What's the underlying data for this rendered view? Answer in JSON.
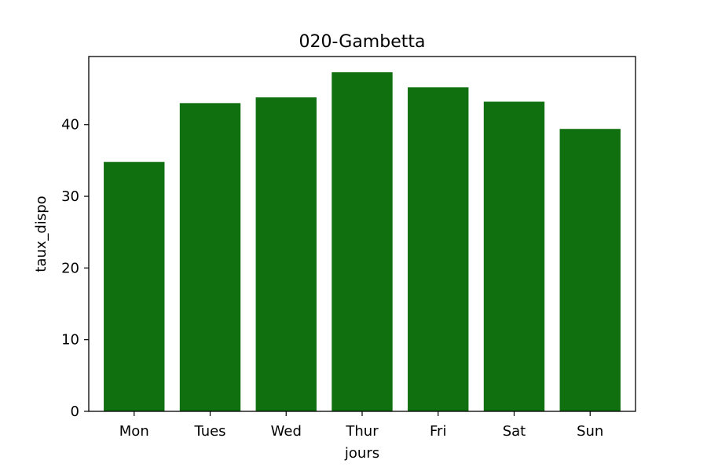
{
  "chart_data": {
    "type": "bar",
    "title": "020-Gambetta",
    "xlabel": "jours",
    "ylabel": "taux_dispo",
    "categories": [
      "Mon",
      "Tues",
      "Wed",
      "Thur",
      "Fri",
      "Sat",
      "Sun"
    ],
    "values": [
      34.8,
      43.0,
      43.8,
      47.3,
      45.2,
      43.2,
      39.4
    ],
    "ylim": [
      0,
      49.5
    ],
    "yticks": [
      0,
      10,
      20,
      30,
      40
    ],
    "bar_color": "#107010",
    "grid": false,
    "legend": "none"
  }
}
